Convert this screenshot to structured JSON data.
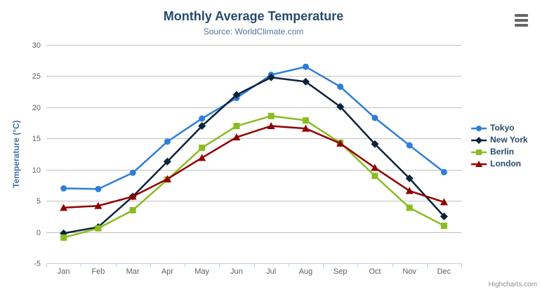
{
  "chart_data": {
    "type": "line",
    "title": "Monthly Average Temperature",
    "subtitle": "Source: WorldClimate.com",
    "categories": [
      "Jan",
      "Feb",
      "Mar",
      "Apr",
      "May",
      "Jun",
      "Jul",
      "Aug",
      "Sep",
      "Oct",
      "Nov",
      "Dec"
    ],
    "xlabel": "",
    "ylabel": "Temperature (°C)",
    "ylim": [
      -5,
      30
    ],
    "yticks": [
      30,
      25,
      20,
      15,
      10,
      5,
      0,
      -5
    ],
    "grid": true,
    "legend_position": "right",
    "series": [
      {
        "name": "Tokyo",
        "color": "#2f7ed8",
        "marker": "circle",
        "values": [
          7.0,
          6.9,
          9.5,
          14.5,
          18.2,
          21.5,
          25.2,
          26.5,
          23.3,
          18.3,
          13.9,
          9.6
        ]
      },
      {
        "name": "New York",
        "color": "#0d233a",
        "marker": "diamond",
        "values": [
          -0.2,
          0.8,
          5.7,
          11.3,
          17.0,
          22.0,
          24.8,
          24.1,
          20.1,
          14.1,
          8.6,
          2.5
        ]
      },
      {
        "name": "Berlin",
        "color": "#8bbc21",
        "marker": "square",
        "values": [
          -0.9,
          0.6,
          3.5,
          8.4,
          13.5,
          17.0,
          18.6,
          17.9,
          14.3,
          9.0,
          3.9,
          1.0
        ]
      },
      {
        "name": "London",
        "color": "#910000",
        "marker": "triangle",
        "values": [
          3.9,
          4.2,
          5.7,
          8.5,
          11.9,
          15.2,
          17.0,
          16.6,
          14.2,
          10.3,
          6.6,
          4.8
        ]
      }
    ]
  },
  "colors": {
    "background": "#ffffff",
    "grid": "#c0c0c0",
    "axis_line": "#c0d0e0",
    "tick": "#c0d0e0",
    "title": "#274b6d",
    "subtitle": "#4d759e",
    "axis_label": "#606060",
    "yaxis_title": "#4572a7",
    "legend_text": "#274b6d",
    "credit": "#909090",
    "export_icon": "#666666"
  },
  "export_menu": {
    "icon": "hamburger-icon"
  },
  "credits": {
    "text": "Highcharts.com"
  }
}
